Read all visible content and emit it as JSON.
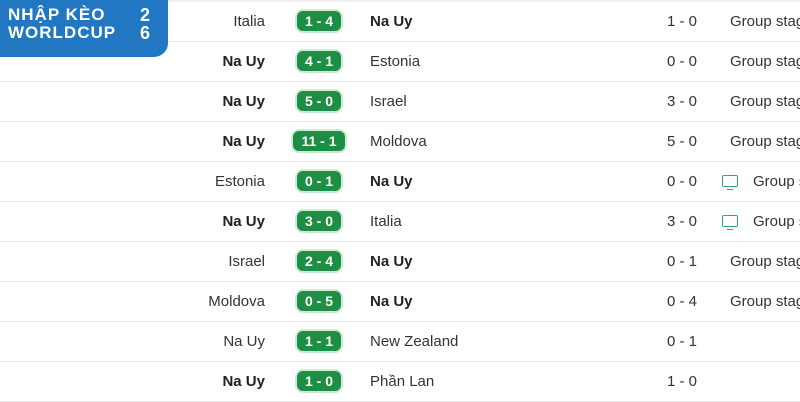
{
  "logo": {
    "line1": "NHẬP KÈO",
    "line2": "WORLDCUP",
    "year_top": "2",
    "year_bottom": "6"
  },
  "matches": [
    {
      "home": "Italia",
      "score": "1 - 4",
      "away": "Na Uy",
      "winner": "away",
      "ht": "1 - 0",
      "stage": "Group stage",
      "tv": false
    },
    {
      "home": "Na Uy",
      "score": "4 - 1",
      "away": "Estonia",
      "winner": "home",
      "ht": "0 - 0",
      "stage": "Group stage",
      "tv": false
    },
    {
      "home": "Na Uy",
      "score": "5 - 0",
      "away": "Israel",
      "winner": "home",
      "ht": "3 - 0",
      "stage": "Group stage",
      "tv": false
    },
    {
      "home": "Na Uy",
      "score": "11 - 1",
      "away": "Moldova",
      "winner": "home",
      "ht": "5 - 0",
      "stage": "Group stage",
      "tv": false
    },
    {
      "home": "Estonia",
      "score": "0 - 1",
      "away": "Na Uy",
      "winner": "away",
      "ht": "0 - 0",
      "stage": "Group stage",
      "tv": true
    },
    {
      "home": "Na Uy",
      "score": "3 - 0",
      "away": "Italia",
      "winner": "home",
      "ht": "3 - 0",
      "stage": "Group stage",
      "tv": true
    },
    {
      "home": "Israel",
      "score": "2 - 4",
      "away": "Na Uy",
      "winner": "away",
      "ht": "0 - 1",
      "stage": "Group stage",
      "tv": false
    },
    {
      "home": "Moldova",
      "score": "0 - 5",
      "away": "Na Uy",
      "winner": "away",
      "ht": "0 - 4",
      "stage": "Group stage",
      "tv": false
    },
    {
      "home": "Na Uy",
      "score": "1 - 1",
      "away": "New Zealand",
      "winner": "none",
      "ht": "0 - 1",
      "stage": "",
      "tv": false
    },
    {
      "home": "Na Uy",
      "score": "1 - 0",
      "away": "Phần Lan",
      "winner": "home",
      "ht": "1 - 0",
      "stage": "",
      "tv": false
    }
  ],
  "colors": {
    "score_badge": "#1e8e45",
    "logo_bg": "#2277c2",
    "tv_icon": "#3aa077"
  }
}
